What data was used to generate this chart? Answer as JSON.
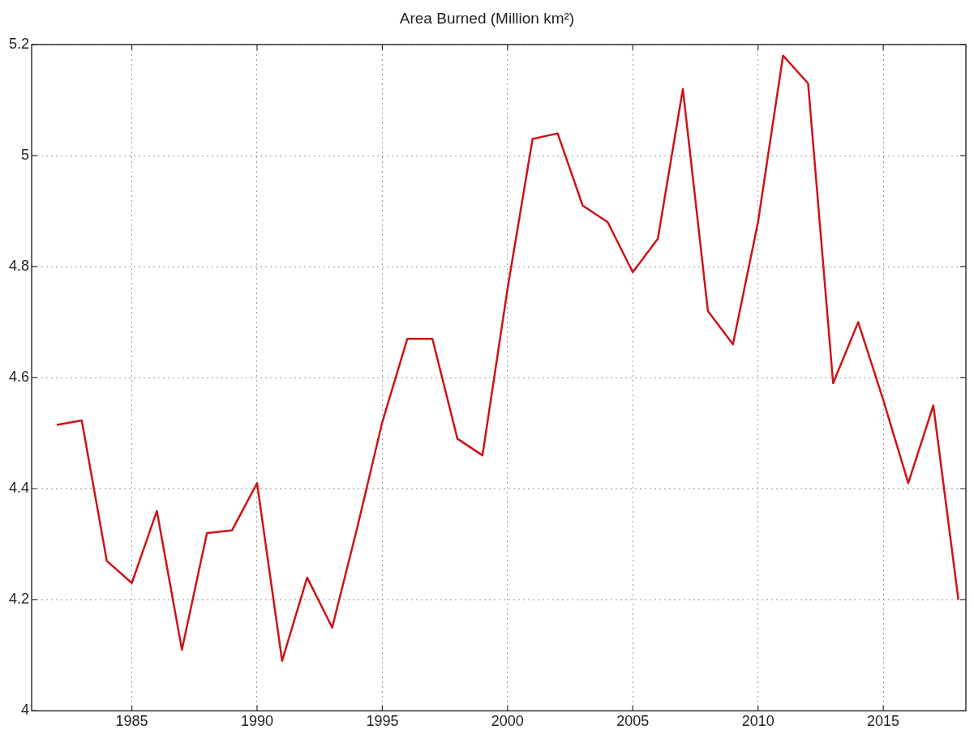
{
  "chart_data": {
    "type": "line",
    "title": "Area Burned (Million km²)",
    "x": [
      1982,
      1983,
      1984,
      1985,
      1986,
      1987,
      1988,
      1989,
      1990,
      1991,
      1992,
      1993,
      1994,
      1995,
      1996,
      1997,
      1998,
      1999,
      2000,
      2001,
      2002,
      2003,
      2004,
      2005,
      2006,
      2007,
      2008,
      2009,
      2010,
      2011,
      2012,
      2013,
      2014,
      2015,
      2016,
      2017,
      2018
    ],
    "series": [
      {
        "color": "#cc1418",
        "values": [
          4.515,
          4.523,
          4.27,
          4.23,
          4.36,
          4.11,
          4.32,
          4.325,
          4.41,
          4.09,
          4.24,
          4.15,
          4.33,
          4.52,
          4.67,
          4.67,
          4.49,
          4.46,
          4.76,
          5.03,
          5.04,
          4.91,
          4.88,
          4.79,
          4.85,
          5.12,
          4.72,
          4.66,
          4.88,
          5.18,
          5.13,
          4.59,
          4.7,
          4.56,
          4.41,
          4.55,
          4.2
        ]
      }
    ],
    "xlim": [
      1981,
      2018.3
    ],
    "xticks": [
      1985,
      1990,
      1995,
      2000,
      2005,
      2010,
      2015
    ],
    "ylim": [
      4,
      5.2
    ],
    "yticks": [
      4,
      4.2,
      4.4,
      4.6,
      4.8,
      5,
      5.2
    ],
    "grid": true,
    "legend": false,
    "marker": "none",
    "line_style": "solid"
  }
}
